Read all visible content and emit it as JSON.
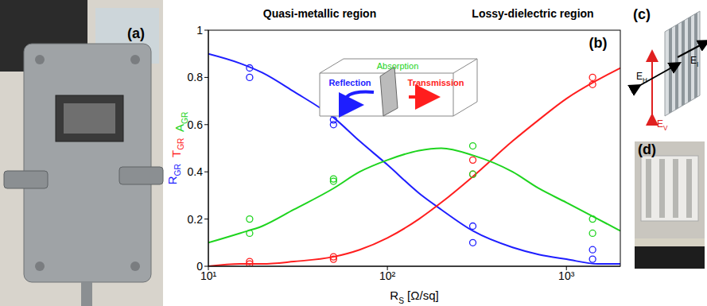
{
  "chart_data": {
    "type": "line",
    "panel_label": "(b)",
    "annotations": [
      "Quasi-metallic region",
      "Lossy-dielectric region"
    ],
    "inset": {
      "absorption": "Absorption",
      "reflection": "Reflection",
      "transmission": "Transmission"
    },
    "xlabel": {
      "text": "R",
      "sub": "S",
      "suffix": " [Ω/sq]"
    },
    "ylabel": [
      {
        "text": "R",
        "sub": "GR",
        "color": "#1e1eff"
      },
      {
        "text": "T",
        "sub": "GR",
        "color": "#ff1e1e"
      },
      {
        "text": "A",
        "sub": "GR",
        "color": "#1ed41e"
      }
    ],
    "log": "x",
    "grid": false,
    "xlim": [
      10,
      2000
    ],
    "xticks": [
      {
        "value": 10,
        "label": "10¹"
      },
      {
        "value": 100,
        "label": "10²"
      },
      {
        "value": 1000,
        "label": "10³"
      }
    ],
    "ylim": [
      0,
      1
    ],
    "yticks": [
      0,
      0.2,
      0.4,
      0.6,
      0.8,
      1
    ],
    "x": [
      10,
      15,
      20,
      30,
      50,
      70,
      100,
      150,
      200,
      300,
      500,
      700,
      1000,
      1500,
      2000
    ],
    "series": [
      {
        "color": "#1e1eff",
        "line_style": "solid",
        "values": [
          0.9,
          0.86,
          0.82,
          0.74,
          0.63,
          0.53,
          0.43,
          0.31,
          0.24,
          0.15,
          0.08,
          0.05,
          0.03,
          0.01,
          0.01
        ]
      },
      {
        "color": "#ff1e1e",
        "line_style": "solid",
        "values": [
          0,
          0.01,
          0.01,
          0.02,
          0.04,
          0.07,
          0.12,
          0.2,
          0.27,
          0.38,
          0.53,
          0.62,
          0.71,
          0.79,
          0.84
        ]
      },
      {
        "color": "#1ed41e",
        "line_style": "solid",
        "values": [
          0.1,
          0.14,
          0.17,
          0.24,
          0.33,
          0.4,
          0.45,
          0.49,
          0.5,
          0.47,
          0.4,
          0.33,
          0.27,
          0.2,
          0.15
        ]
      }
    ],
    "measured": [
      {
        "color": "#1e1eff",
        "marker": "circle",
        "x": [
          17,
          17,
          50,
          50,
          300,
          300,
          1400,
          1400
        ],
        "values": [
          0.84,
          0.8,
          0.62,
          0.6,
          0.17,
          0.1,
          0.07,
          0.03
        ]
      },
      {
        "color": "#ff1e1e",
        "marker": "circle",
        "x": [
          17,
          17,
          50,
          50,
          300,
          300,
          1400,
          1400
        ],
        "values": [
          0.02,
          0.01,
          0.04,
          0.03,
          0.45,
          0.39,
          0.8,
          0.77
        ]
      },
      {
        "color": "#1ed41e",
        "marker": "circle",
        "x": [
          17,
          17,
          50,
          50,
          300,
          300,
          1400,
          1400
        ],
        "values": [
          0.2,
          0.14,
          0.37,
          0.36,
          0.51,
          0.39,
          0.2,
          0.14
        ]
      }
    ]
  },
  "panels": {
    "a": {
      "label": "(a)"
    },
    "c": {
      "label": "(c)",
      "fields": [
        {
          "text": "E",
          "sub": "V",
          "color": "#e02020"
        },
        {
          "text": "E",
          "sub": "H",
          "color": "#000000"
        },
        {
          "text": "E",
          "sub": "I",
          "color": "#000000"
        }
      ]
    },
    "d": {
      "label": "(d)"
    }
  }
}
